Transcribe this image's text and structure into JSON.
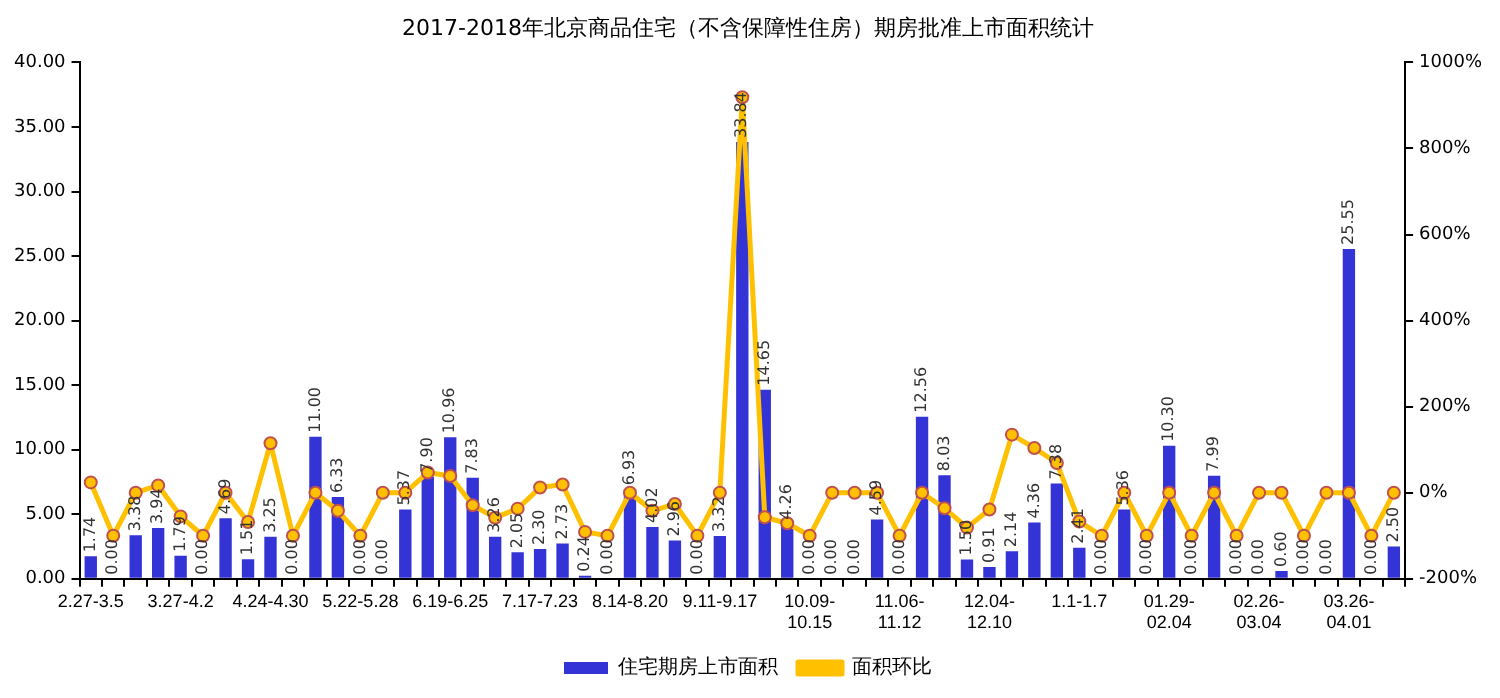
{
  "chart_data": {
    "type": "bar",
    "title": "2017-2018年北京商品住宅（不含保障性住房）期房批准上市面积统计",
    "categories": [
      "2.27-3.5",
      null,
      null,
      null,
      "3.27-4.2",
      null,
      null,
      null,
      "4.24-4.30",
      null,
      null,
      null,
      "5.22-5.28",
      null,
      null,
      null,
      "6.19-6.25",
      null,
      null,
      null,
      "7.17-7.23",
      null,
      null,
      null,
      "8.14-8.20",
      null,
      null,
      null,
      "9.11-9.17",
      null,
      null,
      null,
      "10.09-10.15",
      null,
      null,
      null,
      "11.06-11.12",
      null,
      null,
      null,
      "12.04-12.10",
      null,
      null,
      null,
      "1.1-1.7",
      null,
      null,
      null,
      "01.29-02.04",
      null,
      null,
      null,
      "02.26-03.04",
      null,
      null,
      null,
      "03.26-04.01",
      null,
      null
    ],
    "series": [
      {
        "name": "住宅期房上市面积",
        "color": "#3333d6",
        "values": [
          1.74,
          0,
          3.38,
          3.94,
          1.79,
          0,
          4.69,
          1.51,
          3.25,
          0,
          11,
          6.33,
          0,
          0,
          5.37,
          7.9,
          10.96,
          7.83,
          3.26,
          2.05,
          2.3,
          2.73,
          0.24,
          0,
          6.93,
          4.02,
          2.96,
          0,
          3.32,
          33.84,
          14.65,
          4.26,
          0,
          0,
          0,
          4.59,
          0,
          12.56,
          8.03,
          1.5,
          0.91,
          2.14,
          4.36,
          7.38,
          2.41,
          0,
          5.36,
          0,
          10.3,
          0,
          7.99,
          0,
          0,
          0.6,
          0,
          0,
          25.55,
          0,
          2.5
        ],
        "value_labels": [
          "1.74",
          "0.00",
          "3.38",
          "3.94",
          "1.79",
          "0.00",
          "4.69",
          "1.51",
          "3.25",
          "0.00",
          "11.00",
          "6.33",
          "0.00",
          "0.00",
          "5.37",
          "7.90",
          "10.96",
          "7.83",
          "3.26",
          "2.05",
          "2.30",
          "2.73",
          "0.24",
          "0.00",
          "6.93",
          "4.02",
          "2.96",
          "0.00",
          "3.32",
          "33.84",
          "14.65",
          "4.26",
          "0.00",
          "0.00",
          "0.00",
          "4.59",
          "0.00",
          "12.56",
          "8.03",
          "1.50",
          "0.91",
          "2.14",
          "4.36",
          "7.38",
          "2.41",
          "0.00",
          "5.36",
          "0.00",
          "10.30",
          "0.00",
          "7.99",
          "0.00",
          "0.00",
          "0.60",
          "0.00",
          "0.00",
          "25.55",
          "0.00",
          "2.50"
        ]
      },
      {
        "name": "面积环比",
        "type": "line",
        "axis": "y2",
        "color": "#ffc000",
        "marker": "circle",
        "values": [
          24,
          -100,
          0,
          17,
          -55,
          -100,
          0,
          -68,
          115,
          -100,
          0,
          -42,
          -100,
          0,
          0,
          47,
          39,
          -29,
          -58,
          -37,
          12,
          19,
          -91,
          -100,
          0,
          -42,
          -26,
          -100,
          0,
          919,
          -57,
          -71,
          -100,
          0,
          0,
          0,
          -100,
          0,
          -36,
          -81,
          -39,
          135,
          104,
          69,
          -67,
          -100,
          0,
          -100,
          0,
          -100,
          0,
          -100,
          0,
          0,
          -100,
          0,
          0,
          -100,
          0
        ]
      }
    ],
    "ylim": [
      0,
      40
    ],
    "yticks": [
      {
        "value": 0,
        "label": "0.00"
      },
      {
        "value": 5,
        "label": "5.00"
      },
      {
        "value": 10,
        "label": "10.00"
      },
      {
        "value": 15,
        "label": "15.00"
      },
      {
        "value": 20,
        "label": "20.00"
      },
      {
        "value": 25,
        "label": "25.00"
      },
      {
        "value": 30,
        "label": "30.00"
      },
      {
        "value": 35,
        "label": "35.00"
      },
      {
        "value": 40,
        "label": "40.00"
      }
    ],
    "y2lim": [
      -200,
      1000
    ],
    "y2ticks": [
      {
        "value": -200,
        "label": "-200%"
      },
      {
        "value": 0,
        "label": "0%"
      },
      {
        "value": 200,
        "label": "200%"
      },
      {
        "value": 400,
        "label": "400%"
      },
      {
        "value": 600,
        "label": "600%"
      },
      {
        "value": 800,
        "label": "800%"
      },
      {
        "value": 1000,
        "label": "1000%"
      }
    ],
    "grid": false,
    "legend": "bottom"
  }
}
